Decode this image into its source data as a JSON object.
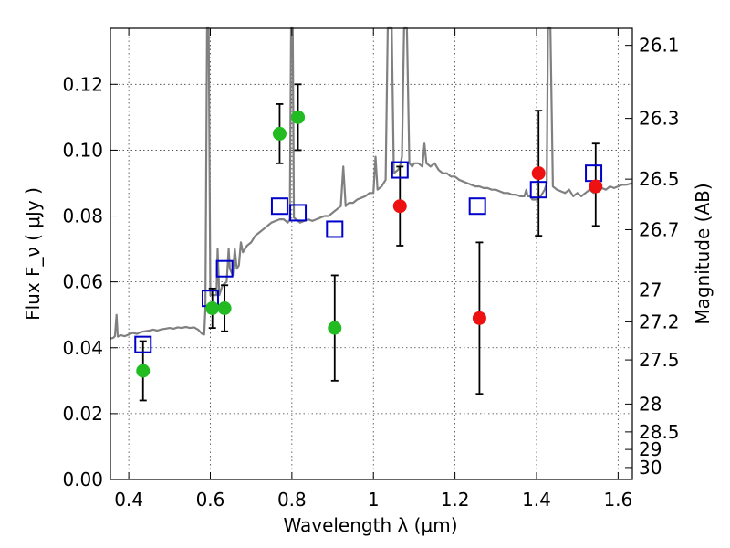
{
  "chart_data": {
    "type": "scatter",
    "xlabel": "Wavelength  λ (μm)",
    "ylabel": "Flux  F_ν  ( μJy )",
    "y2label": "Magnitude (AB)",
    "xlim": [
      0.355,
      1.635
    ],
    "ylim": [
      0.0,
      0.137
    ],
    "grid": true,
    "x_ticks": [
      0.4,
      0.6,
      0.8,
      1.0,
      1.2,
      1.4,
      1.6
    ],
    "x_tick_labels": [
      "0.4",
      "0.6",
      "0.8",
      "1",
      "1.2",
      "1.4",
      "1.6"
    ],
    "y_ticks": [
      0.0,
      0.02,
      0.04,
      0.06,
      0.08,
      0.1,
      0.12
    ],
    "y_tick_labels": [
      "0.00",
      "0.02",
      "0.04",
      "0.06",
      "0.08",
      "0.10",
      "0.12"
    ],
    "y2_ticks": [
      {
        "label": "26.1",
        "value": 26.1
      },
      {
        "label": "26.3",
        "value": 26.3
      },
      {
        "label": "26.5",
        "value": 26.5
      },
      {
        "label": "26.7",
        "value": 26.7
      },
      {
        "label": "27",
        "value": 27.0
      },
      {
        "label": "27.2",
        "value": 27.2
      },
      {
        "label": "27.5",
        "value": 27.5
      },
      {
        "label": "28",
        "value": 28.0
      },
      {
        "label": "28.5",
        "value": 28.5
      },
      {
        "label": "29",
        "value": 29.0
      },
      {
        "label": "30",
        "value": 30.0
      }
    ],
    "colors": {
      "spectrum": "#808080",
      "model": "#0000cc",
      "green": "#22bb22",
      "red": "#ee1111",
      "errorbar": "#000000"
    },
    "series": [
      {
        "marker": "open-square",
        "color": "#0000cc",
        "points": [
          {
            "x": 0.435,
            "y": 0.041
          },
          {
            "x": 0.6,
            "y": 0.055
          },
          {
            "x": 0.635,
            "y": 0.064
          },
          {
            "x": 0.77,
            "y": 0.083
          },
          {
            "x": 0.815,
            "y": 0.081
          },
          {
            "x": 0.905,
            "y": 0.076
          },
          {
            "x": 1.065,
            "y": 0.094
          },
          {
            "x": 1.255,
            "y": 0.083
          },
          {
            "x": 1.405,
            "y": 0.088
          },
          {
            "x": 1.54,
            "y": 0.093
          }
        ]
      },
      {
        "marker": "filled-circle",
        "color": "#22bb22",
        "points": [
          {
            "x": 0.435,
            "y": 0.033,
            "ylo": 0.024,
            "yhi": 0.042
          },
          {
            "x": 0.605,
            "y": 0.052,
            "ylo": 0.046,
            "yhi": 0.058
          },
          {
            "x": 0.635,
            "y": 0.052,
            "ylo": 0.045,
            "yhi": 0.059
          },
          {
            "x": 0.77,
            "y": 0.105,
            "ylo": 0.096,
            "yhi": 0.114
          },
          {
            "x": 0.815,
            "y": 0.11,
            "ylo": 0.1,
            "yhi": 0.12
          },
          {
            "x": 0.905,
            "y": 0.046,
            "ylo": 0.03,
            "yhi": 0.062
          }
        ]
      },
      {
        "marker": "filled-circle",
        "color": "#ee1111",
        "points": [
          {
            "x": 1.065,
            "y": 0.083,
            "ylo": 0.071,
            "yhi": 0.095
          },
          {
            "x": 1.26,
            "y": 0.049,
            "ylo": 0.026,
            "yhi": 0.072
          },
          {
            "x": 1.405,
            "y": 0.093,
            "ylo": 0.074,
            "yhi": 0.112
          },
          {
            "x": 1.545,
            "y": 0.089,
            "ylo": 0.077,
            "yhi": 0.102
          }
        ]
      }
    ],
    "spectrum": [
      [
        0.355,
        0.0428
      ],
      [
        0.362,
        0.043
      ],
      [
        0.366,
        0.0435
      ],
      [
        0.37,
        0.05
      ],
      [
        0.373,
        0.0434
      ],
      [
        0.38,
        0.0438
      ],
      [
        0.39,
        0.0435
      ],
      [
        0.4,
        0.044
      ],
      [
        0.41,
        0.0445
      ],
      [
        0.42,
        0.0442
      ],
      [
        0.43,
        0.0448
      ],
      [
        0.44,
        0.045
      ],
      [
        0.45,
        0.0452
      ],
      [
        0.46,
        0.0455
      ],
      [
        0.47,
        0.0452
      ],
      [
        0.48,
        0.0456
      ],
      [
        0.49,
        0.0458
      ],
      [
        0.5,
        0.046
      ],
      [
        0.51,
        0.0458
      ],
      [
        0.52,
        0.0462
      ],
      [
        0.53,
        0.046
      ],
      [
        0.54,
        0.0463
      ],
      [
        0.55,
        0.046
      ],
      [
        0.56,
        0.0462
      ],
      [
        0.57,
        0.0455
      ],
      [
        0.58,
        0.0442
      ],
      [
        0.585,
        0.044
      ],
      [
        0.588,
        0.052
      ],
      [
        0.592,
        0.137
      ],
      [
        0.596,
        0.137
      ],
      [
        0.6,
        0.056
      ],
      [
        0.61,
        0.056
      ],
      [
        0.615,
        0.056
      ],
      [
        0.618,
        0.07
      ],
      [
        0.622,
        0.056
      ],
      [
        0.63,
        0.059
      ],
      [
        0.64,
        0.06
      ],
      [
        0.645,
        0.07
      ],
      [
        0.648,
        0.064
      ],
      [
        0.655,
        0.062
      ],
      [
        0.66,
        0.07
      ],
      [
        0.665,
        0.064
      ],
      [
        0.67,
        0.065
      ],
      [
        0.675,
        0.072
      ],
      [
        0.68,
        0.069
      ],
      [
        0.69,
        0.071
      ],
      [
        0.7,
        0.072
      ],
      [
        0.71,
        0.074
      ],
      [
        0.72,
        0.075
      ],
      [
        0.73,
        0.076
      ],
      [
        0.74,
        0.077
      ],
      [
        0.75,
        0.078
      ],
      [
        0.76,
        0.0785
      ],
      [
        0.77,
        0.079
      ],
      [
        0.78,
        0.079
      ],
      [
        0.79,
        0.078
      ],
      [
        0.795,
        0.079
      ],
      [
        0.798,
        0.137
      ],
      [
        0.802,
        0.137
      ],
      [
        0.805,
        0.0795
      ],
      [
        0.81,
        0.079
      ],
      [
        0.82,
        0.078
      ],
      [
        0.83,
        0.0785
      ],
      [
        0.84,
        0.079
      ],
      [
        0.85,
        0.0785
      ],
      [
        0.86,
        0.079
      ],
      [
        0.87,
        0.0795
      ],
      [
        0.88,
        0.08
      ],
      [
        0.89,
        0.08
      ],
      [
        0.9,
        0.081
      ],
      [
        0.91,
        0.082
      ],
      [
        0.92,
        0.083
      ],
      [
        0.926,
        0.095
      ],
      [
        0.932,
        0.083
      ],
      [
        0.94,
        0.084
      ],
      [
        0.95,
        0.084
      ],
      [
        0.96,
        0.085
      ],
      [
        0.97,
        0.0855
      ],
      [
        0.98,
        0.086
      ],
      [
        0.99,
        0.087
      ],
      [
        1.0,
        0.087
      ],
      [
        1.005,
        0.098
      ],
      [
        1.01,
        0.088
      ],
      [
        1.02,
        0.089
      ],
      [
        1.03,
        0.091
      ],
      [
        1.035,
        0.137
      ],
      [
        1.045,
        0.137
      ],
      [
        1.05,
        0.093
      ],
      [
        1.06,
        0.094
      ],
      [
        1.065,
        0.095
      ],
      [
        1.07,
        0.098
      ],
      [
        1.075,
        0.137
      ],
      [
        1.082,
        0.137
      ],
      [
        1.088,
        0.096
      ],
      [
        1.095,
        0.095
      ],
      [
        1.1,
        0.096
      ],
      [
        1.11,
        0.096
      ],
      [
        1.12,
        0.095
      ],
      [
        1.125,
        0.102
      ],
      [
        1.13,
        0.096
      ],
      [
        1.14,
        0.095
      ],
      [
        1.15,
        0.096
      ],
      [
        1.16,
        0.094
      ],
      [
        1.17,
        0.093
      ],
      [
        1.18,
        0.093
      ],
      [
        1.19,
        0.092
      ],
      [
        1.2,
        0.092
      ],
      [
        1.21,
        0.091
      ],
      [
        1.22,
        0.0905
      ],
      [
        1.23,
        0.09
      ],
      [
        1.24,
        0.0895
      ],
      [
        1.25,
        0.089
      ],
      [
        1.26,
        0.089
      ],
      [
        1.27,
        0.0885
      ],
      [
        1.28,
        0.0885
      ],
      [
        1.29,
        0.088
      ],
      [
        1.3,
        0.088
      ],
      [
        1.31,
        0.0875
      ],
      [
        1.32,
        0.087
      ],
      [
        1.33,
        0.087
      ],
      [
        1.34,
        0.0865
      ],
      [
        1.35,
        0.0865
      ],
      [
        1.36,
        0.086
      ],
      [
        1.37,
        0.086
      ],
      [
        1.375,
        0.088
      ],
      [
        1.378,
        0.086
      ],
      [
        1.385,
        0.086
      ],
      [
        1.39,
        0.085
      ],
      [
        1.4,
        0.085
      ],
      [
        1.41,
        0.086
      ],
      [
        1.42,
        0.088
      ],
      [
        1.425,
        0.09
      ],
      [
        1.428,
        0.137
      ],
      [
        1.434,
        0.137
      ],
      [
        1.44,
        0.089
      ],
      [
        1.45,
        0.088
      ],
      [
        1.46,
        0.0875
      ],
      [
        1.47,
        0.087
      ],
      [
        1.48,
        0.088
      ],
      [
        1.49,
        0.086
      ],
      [
        1.5,
        0.087
      ],
      [
        1.51,
        0.086
      ],
      [
        1.52,
        0.087
      ],
      [
        1.53,
        0.088
      ],
      [
        1.54,
        0.087
      ],
      [
        1.55,
        0.088
      ],
      [
        1.56,
        0.0885
      ],
      [
        1.57,
        0.088
      ],
      [
        1.58,
        0.089
      ],
      [
        1.59,
        0.0885
      ],
      [
        1.6,
        0.089
      ],
      [
        1.61,
        0.0895
      ],
      [
        1.62,
        0.0895
      ],
      [
        1.635,
        0.09
      ]
    ]
  }
}
